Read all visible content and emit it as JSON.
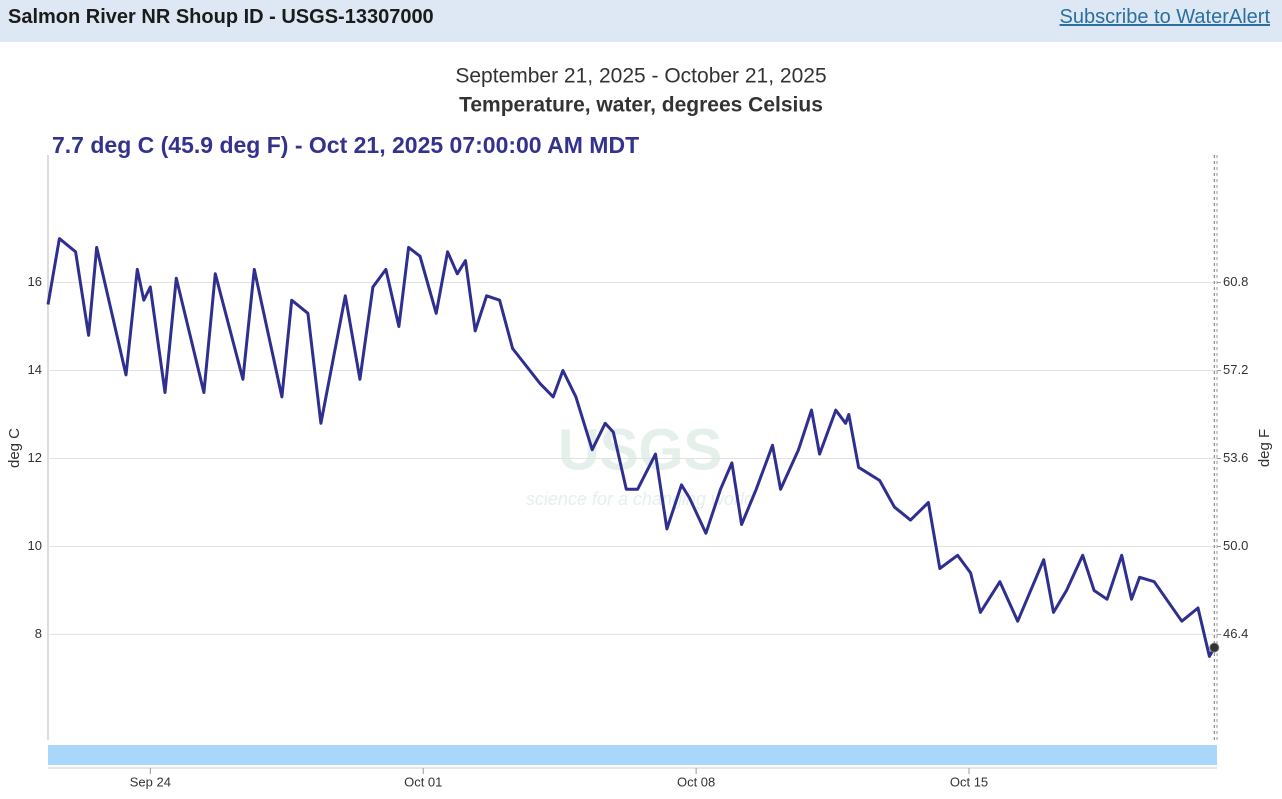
{
  "header": {
    "title": "Salmon River NR Shoup ID - USGS-13307000",
    "link": "Subscribe to WaterAlert"
  },
  "chart_data": {
    "type": "line",
    "subtitle": "September 21, 2025 - October 21, 2025",
    "title": "Temperature, water, degrees Celsius",
    "annotation": "7.7 deg C (45.9 deg F) - Oct 21, 2025 07:00:00 AM MDT",
    "watermark": [
      "USGS",
      "science for a changing world"
    ],
    "y_label": "deg C",
    "y2_label": "deg F",
    "color": "#2f2f8f",
    "grid": true,
    "xlim": [
      "2025-09-21T09:00",
      "2025-10-21T08:40"
    ],
    "xticks": [
      {
        "value": "2025-09-24T00:00",
        "label": "Sep 24"
      },
      {
        "value": "2025-10-01T00:00",
        "label": "Oct 01"
      },
      {
        "value": "2025-10-08T00:00",
        "label": "Oct 08"
      },
      {
        "value": "2025-10-15T00:00",
        "label": "Oct 15"
      }
    ],
    "ylim": [
      5.6,
      18.9
    ],
    "yticks": [
      8,
      10,
      12,
      14,
      16
    ],
    "y2lim": [
      42.08,
      66.02
    ],
    "y2ticks": [
      46.4,
      {
        "value": 50,
        "label": "50.0"
      },
      53.6,
      57.2,
      60.8
    ],
    "x": [
      "2025-09-21T09:00",
      "2025-09-21T16:00",
      "2025-09-22T02:00",
      "2025-09-22T10:00",
      "2025-09-22T15:00",
      "2025-09-23T09:00",
      "2025-09-23T16:00",
      "2025-09-23T20:00",
      "2025-09-24T00:00",
      "2025-09-24T09:00",
      "2025-09-24T16:00",
      "2025-09-25T09:00",
      "2025-09-25T16:00",
      "2025-09-26T09:00",
      "2025-09-26T16:00",
      "2025-09-27T09:00",
      "2025-09-27T15:00",
      "2025-09-28T01:00",
      "2025-09-28T09:00",
      "2025-09-29T00:00",
      "2025-09-29T09:00",
      "2025-09-29T17:00",
      "2025-09-30T01:00",
      "2025-09-30T09:00",
      "2025-09-30T15:00",
      "2025-09-30T22:00",
      "2025-10-01T08:00",
      "2025-10-01T15:00",
      "2025-10-01T21:00",
      "2025-10-02T02:00",
      "2025-10-02T08:00",
      "2025-10-02T15:00",
      "2025-10-02T23:00",
      "2025-10-03T07:00",
      "2025-10-04T00:00",
      "2025-10-04T08:00",
      "2025-10-04T14:00",
      "2025-10-04T22:00",
      "2025-10-05T08:00",
      "2025-10-05T16:00",
      "2025-10-05T21:00",
      "2025-10-06T05:00",
      "2025-10-06T12:00",
      "2025-10-06T23:00",
      "2025-10-07T06:00",
      "2025-10-07T15:00",
      "2025-10-07T20:00",
      "2025-10-08T06:00",
      "2025-10-08T15:00",
      "2025-10-08T22:00",
      "2025-10-09T04:00",
      "2025-10-09T13:00",
      "2025-10-09T23:00",
      "2025-10-10T04:00",
      "2025-10-10T15:00",
      "2025-10-10T23:00",
      "2025-10-11T04:00",
      "2025-10-11T14:00",
      "2025-10-11T20:00",
      "2025-10-11T22:00",
      "2025-10-12T04:00",
      "2025-10-12T17:00",
      "2025-10-13T02:00",
      "2025-10-13T12:00",
      "2025-10-13T23:00",
      "2025-10-14T06:00",
      "2025-10-14T17:00",
      "2025-10-15T01:00",
      "2025-10-15T07:00",
      "2025-10-15T19:00",
      "2025-10-16T06:00",
      "2025-10-16T22:00",
      "2025-10-17T04:00",
      "2025-10-17T12:00",
      "2025-10-17T22:00",
      "2025-10-18T05:00",
      "2025-10-18T13:00",
      "2025-10-18T22:00",
      "2025-10-19T04:00",
      "2025-10-19T09:00",
      "2025-10-19T18:00",
      "2025-10-20T11:00",
      "2025-10-20T21:00",
      "2025-10-21T04:00",
      "2025-10-21T07:00"
    ],
    "values": [
      15.5,
      17.0,
      16.7,
      14.8,
      16.8,
      13.9,
      16.3,
      15.6,
      15.9,
      13.5,
      16.1,
      13.5,
      16.2,
      13.8,
      16.3,
      13.4,
      15.6,
      15.3,
      12.8,
      15.7,
      13.8,
      15.9,
      16.3,
      15.0,
      16.8,
      16.6,
      15.3,
      16.7,
      16.2,
      16.5,
      14.9,
      15.7,
      15.6,
      14.5,
      13.7,
      13.4,
      14.0,
      13.4,
      12.2,
      12.8,
      12.6,
      11.3,
      11.3,
      12.1,
      10.4,
      11.4,
      11.1,
      10.3,
      11.3,
      11.9,
      10.5,
      11.3,
      12.3,
      11.3,
      12.2,
      13.1,
      12.1,
      13.1,
      12.8,
      13.0,
      11.8,
      11.5,
      10.9,
      10.6,
      11.0,
      9.5,
      9.8,
      9.4,
      8.5,
      9.2,
      8.3,
      9.7,
      8.5,
      9.0,
      9.8,
      9.0,
      8.8,
      9.8,
      8.8,
      9.3,
      9.2,
      8.3,
      8.6,
      7.5,
      7.7
    ]
  }
}
